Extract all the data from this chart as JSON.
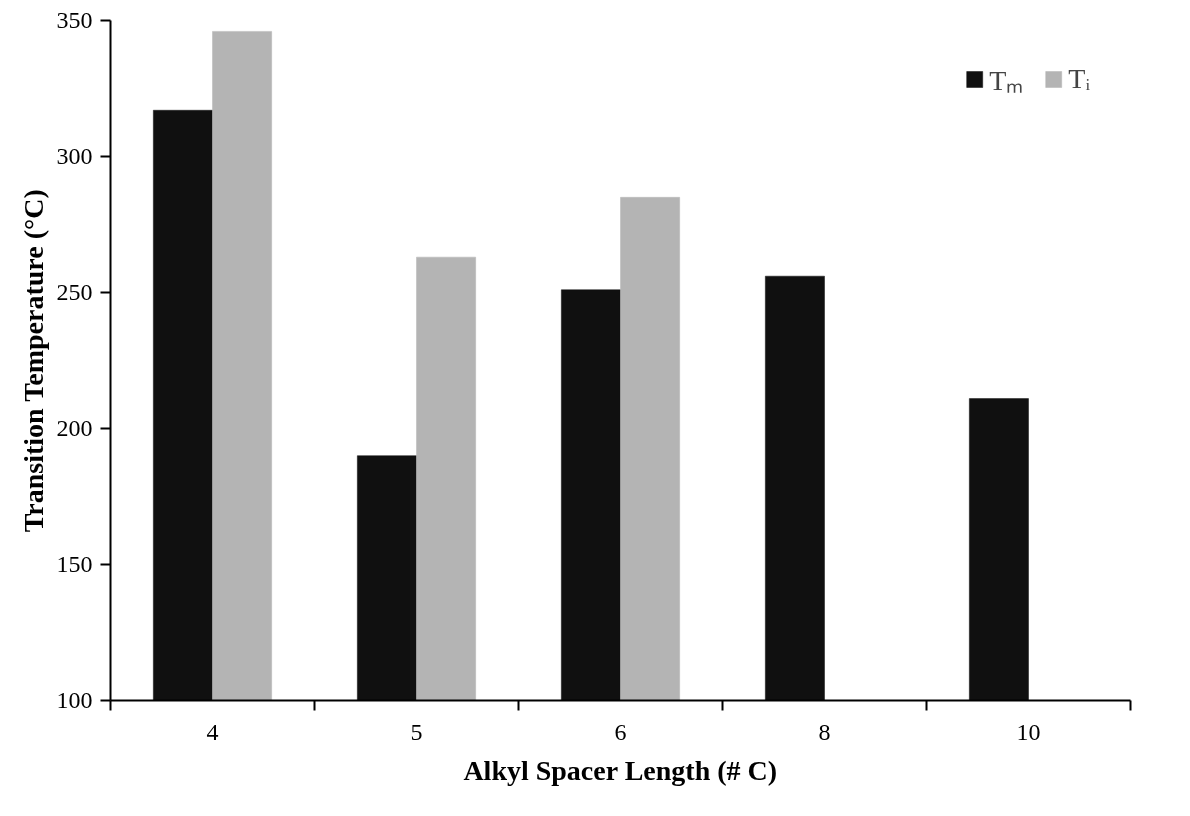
{
  "chart_data": {
    "type": "bar",
    "xlabel": "Alkyl Spacer Length (# C)",
    "ylabel": "Transition Temperature (°C)",
    "categories": [
      "4",
      "5",
      "6",
      "8",
      "10"
    ],
    "series": [
      {
        "name": "Tₘ",
        "color": "#101010",
        "values": [
          317,
          190,
          251,
          256,
          211
        ]
      },
      {
        "name": "Tᵢ",
        "color": "#b4b4b4",
        "values": [
          346,
          263,
          285,
          null,
          null
        ]
      }
    ],
    "ylim": [
      100,
      350
    ],
    "yticks": [
      100,
      150,
      200,
      250,
      300,
      350
    ],
    "grid": false,
    "legend": "top right"
  }
}
